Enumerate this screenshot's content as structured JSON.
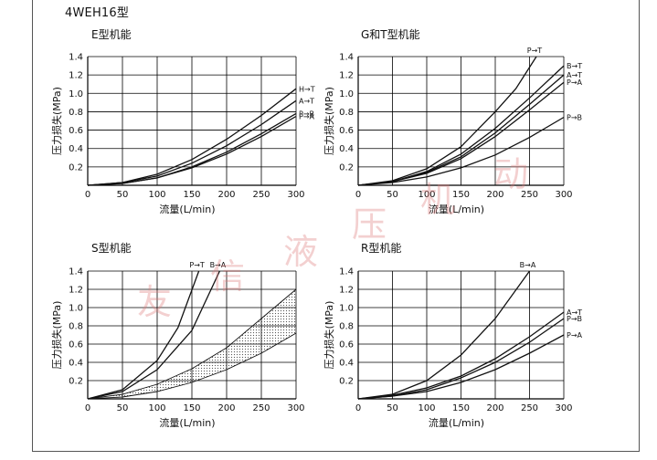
{
  "page": {
    "title": "4WEH16型",
    "watermark": "友信液压机动"
  },
  "colors": {
    "line": "#111111",
    "grid": "#000000",
    "shade": "#555555",
    "watermark": "#e08080"
  },
  "chart_data": [
    {
      "type": "line",
      "title": "E型机能",
      "xlabel": "流量(L/min)",
      "ylabel": "压力损失(MPa)",
      "x_ticks": [
        0,
        50,
        100,
        150,
        200,
        250,
        300
      ],
      "y_ticks": [
        0.2,
        0.4,
        0.6,
        0.8,
        1.0,
        1.2,
        1.4
      ],
      "xlim": [
        0,
        300
      ],
      "ylim": [
        0,
        1.4
      ],
      "grid": true,
      "series": [
        {
          "name": "H→T",
          "x": [
            0,
            50,
            100,
            150,
            200,
            250,
            300
          ],
          "y": [
            0,
            0.03,
            0.12,
            0.28,
            0.5,
            0.76,
            1.05
          ]
        },
        {
          "name": "A→T",
          "x": [
            0,
            50,
            100,
            150,
            200,
            250,
            300
          ],
          "y": [
            0,
            0.03,
            0.1,
            0.24,
            0.43,
            0.66,
            0.92
          ]
        },
        {
          "name": "P→B",
          "x": [
            0,
            50,
            100,
            150,
            200,
            250,
            300
          ],
          "y": [
            0,
            0.02,
            0.08,
            0.2,
            0.36,
            0.56,
            0.78
          ]
        },
        {
          "name": "P→A",
          "x": [
            0,
            50,
            100,
            150,
            200,
            250,
            300
          ],
          "y": [
            0,
            0.02,
            0.08,
            0.19,
            0.34,
            0.53,
            0.75
          ]
        }
      ]
    },
    {
      "type": "line",
      "title": "G和T型机能",
      "xlabel": "流量(L/min)",
      "ylabel": "压力损失(MPa)",
      "x_ticks": [
        0,
        50,
        100,
        150,
        200,
        250,
        300
      ],
      "y_ticks": [
        0.2,
        0.4,
        0.6,
        0.8,
        1.0,
        1.2,
        1.4
      ],
      "xlim": [
        0,
        300
      ],
      "ylim": [
        0,
        1.4
      ],
      "grid": true,
      "series": [
        {
          "name": "P→T",
          "x": [
            0,
            50,
            100,
            150,
            200,
            230,
            260
          ],
          "y": [
            0,
            0.05,
            0.18,
            0.42,
            0.8,
            1.05,
            1.4
          ]
        },
        {
          "name": "B→T",
          "x": [
            0,
            50,
            100,
            150,
            200,
            250,
            300
          ],
          "y": [
            0,
            0.04,
            0.15,
            0.34,
            0.62,
            0.95,
            1.3
          ]
        },
        {
          "name": "A→T",
          "x": [
            0,
            50,
            100,
            150,
            200,
            250,
            300
          ],
          "y": [
            0,
            0.04,
            0.14,
            0.31,
            0.57,
            0.88,
            1.2
          ]
        },
        {
          "name": "P→A",
          "x": [
            0,
            50,
            100,
            150,
            200,
            250,
            300
          ],
          "y": [
            0,
            0.04,
            0.13,
            0.29,
            0.53,
            0.82,
            1.12
          ]
        },
        {
          "name": "P→B",
          "x": [
            0,
            50,
            100,
            150,
            200,
            250,
            300
          ],
          "y": [
            0,
            0.03,
            0.09,
            0.19,
            0.33,
            0.52,
            0.74
          ]
        }
      ]
    },
    {
      "type": "line",
      "title": "S型机能",
      "xlabel": "流量(L/min)",
      "ylabel": "压力损失(MPa)",
      "x_ticks": [
        0,
        50,
        100,
        150,
        200,
        250,
        300
      ],
      "y_ticks": [
        0.2,
        0.4,
        0.6,
        0.8,
        1.0,
        1.2,
        1.4
      ],
      "xlim": [
        0,
        300
      ],
      "ylim": [
        0,
        1.4
      ],
      "grid": true,
      "series": [
        {
          "name": "P→T",
          "x": [
            0,
            50,
            100,
            130,
            160
          ],
          "y": [
            0,
            0.1,
            0.42,
            0.78,
            1.4
          ]
        },
        {
          "name": "B→A",
          "x": [
            0,
            50,
            100,
            150,
            190
          ],
          "y": [
            0,
            0.08,
            0.32,
            0.75,
            1.4
          ]
        }
      ],
      "band": {
        "upper": {
          "x": [
            0,
            50,
            100,
            150,
            200,
            250,
            300
          ],
          "y": [
            0,
            0.05,
            0.16,
            0.33,
            0.56,
            0.88,
            1.2
          ]
        },
        "lower": {
          "x": [
            0,
            50,
            100,
            150,
            200,
            250,
            300
          ],
          "y": [
            0,
            0.02,
            0.08,
            0.18,
            0.32,
            0.5,
            0.72
          ]
        }
      }
    },
    {
      "type": "line",
      "title": "R型机能",
      "xlabel": "流量(L/min)",
      "ylabel": "压力损失(MPa)",
      "x_ticks": [
        0,
        50,
        100,
        150,
        200,
        250,
        300
      ],
      "y_ticks": [
        0.2,
        0.4,
        0.6,
        0.8,
        1.0,
        1.2,
        1.4
      ],
      "xlim": [
        0,
        300
      ],
      "ylim": [
        0,
        1.4
      ],
      "grid": true,
      "series": [
        {
          "name": "B→A",
          "x": [
            0,
            50,
            100,
            150,
            200,
            250
          ],
          "y": [
            0,
            0.05,
            0.2,
            0.48,
            0.88,
            1.4
          ]
        },
        {
          "name": "A→T",
          "x": [
            0,
            50,
            100,
            150,
            200,
            250,
            300
          ],
          "y": [
            0,
            0.04,
            0.12,
            0.25,
            0.44,
            0.68,
            0.95
          ]
        },
        {
          "name": "P→B",
          "x": [
            0,
            50,
            100,
            150,
            200,
            250,
            300
          ],
          "y": [
            0,
            0.03,
            0.1,
            0.23,
            0.4,
            0.62,
            0.88
          ]
        },
        {
          "name": "P→A",
          "x": [
            0,
            50,
            100,
            150,
            200,
            250,
            300
          ],
          "y": [
            0,
            0.03,
            0.08,
            0.18,
            0.32,
            0.5,
            0.7
          ]
        }
      ]
    }
  ]
}
